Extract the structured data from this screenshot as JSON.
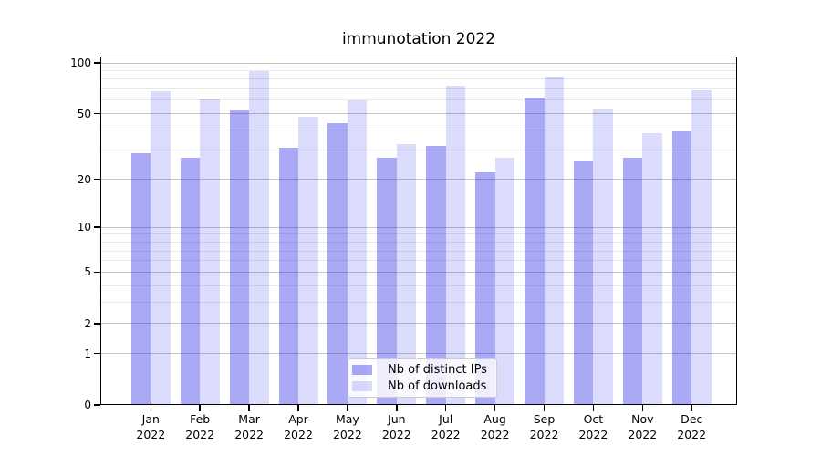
{
  "chart_data": {
    "type": "bar",
    "title": "immunotation 2022",
    "x_tick_months": [
      "Jan",
      "Feb",
      "Mar",
      "Apr",
      "May",
      "Jun",
      "Jul",
      "Aug",
      "Sep",
      "Oct",
      "Nov",
      "Dec"
    ],
    "x_tick_year": "2022",
    "categories": [
      "Jan 2022",
      "Feb 2022",
      "Mar 2022",
      "Apr 2022",
      "May 2022",
      "Jun 2022",
      "Jul 2022",
      "Aug 2022",
      "Sep 2022",
      "Oct 2022",
      "Nov 2022",
      "Dec 2022"
    ],
    "series": [
      {
        "name": "Nb of distinct IPs",
        "color": "rgba(28,28,230,0.38)",
        "values": [
          29,
          27,
          52,
          31,
          44,
          27,
          32,
          22,
          62,
          26,
          27,
          39
        ]
      },
      {
        "name": "Nb of downloads",
        "color": "rgba(28,28,230,0.16)",
        "values": [
          68,
          61,
          89,
          48,
          60,
          33,
          73,
          27,
          83,
          53,
          38,
          69
        ]
      }
    ],
    "yscale": "log10(value+1)",
    "yticks": [
      0,
      1,
      2,
      5,
      10,
      20,
      50,
      100
    ],
    "yticks_minor": [
      3,
      4,
      6,
      7,
      8,
      9,
      30,
      40,
      60,
      70,
      80,
      90
    ],
    "ylim": [
      0,
      109
    ],
    "xlabel": "",
    "ylabel": "",
    "grid": "both",
    "legend_position": "lower center"
  },
  "colors": {
    "background": "#ffffff",
    "spine": "#000000",
    "grid_major": "#c6c6c6",
    "grid_minor": "#e9e9e9",
    "text": "#000000",
    "legend_border": "#cccccc",
    "legend_background": "rgba(255,255,255,0.8)"
  }
}
